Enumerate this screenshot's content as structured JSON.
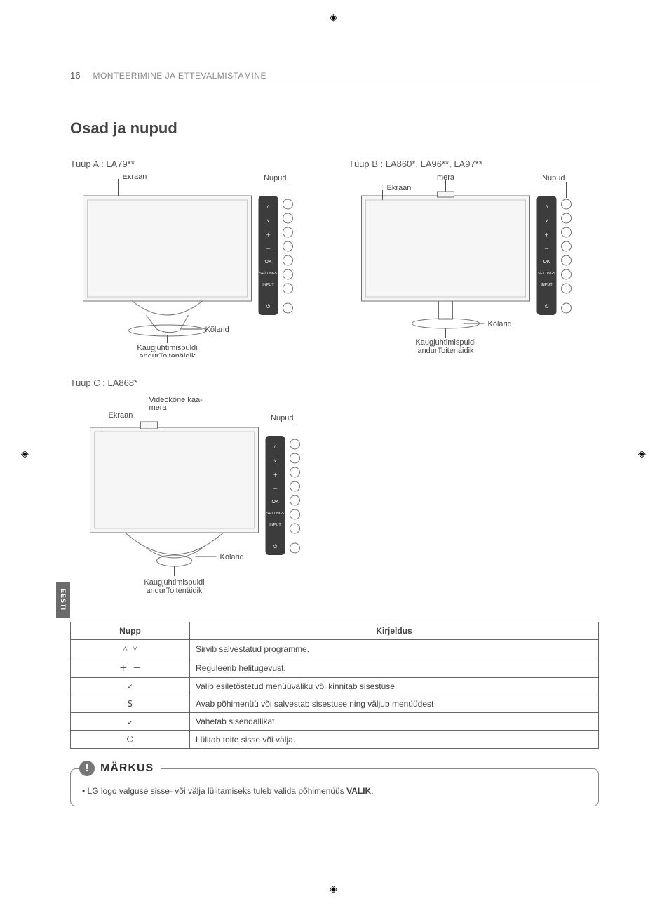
{
  "page_number": "16",
  "header": "MONTEERIMINE JA ETTEVALMISTAMINE",
  "heading": "Osad ja nupud",
  "lang_tab": "EESTI",
  "types": {
    "a": {
      "title": "Tüüp A : LA79**"
    },
    "b": {
      "title": "Tüüp B : LA860*, LA96**, LA97**"
    },
    "c": {
      "title": "Tüüp C : LA868*"
    }
  },
  "diagram_labels": {
    "ekraan": "Ekraan",
    "nupud": "Nupud",
    "kolarid": "Kõlarid",
    "kamera": "Videokõne kaa-\nmera",
    "remote": "Kaugjuhtimispuldi\nandurToitenäidik",
    "panel": {
      "ok": "OK",
      "settings": "SETTINGS",
      "input": "INPUT"
    }
  },
  "table": {
    "head": {
      "button": "Nupp",
      "desc": "Kirjeldus"
    },
    "rows": [
      {
        "icon": "˄ ˅",
        "desc": "Sirvib salvestatud programme."
      },
      {
        "icon": "＋ －",
        "desc": "Reguleerib helitugevust."
      },
      {
        "icon": "✓",
        "desc": "Valib esiletõstetud menüüvaliku või kinnitab sisestuse."
      },
      {
        "icon": "S",
        "desc": "Avab põhimenüü või salvestab sisestuse ning väljub menüüdest"
      },
      {
        "icon": "↙",
        "desc": "Vahetab sisendallikat."
      },
      {
        "icon": "⏻",
        "desc": "Lülitab toite sisse või välja."
      }
    ]
  },
  "note": {
    "title": "MÄRKUS",
    "text_pre": "LG logo valguse sisse- või välja lülitamiseks tuleb valida põhimenüüs ",
    "text_bold": "VALIK",
    "text_post": "."
  },
  "colors": {
    "panel_bg": "#3c3c3c",
    "tv_fill": "#f6f6f6",
    "stroke": "#707070"
  }
}
